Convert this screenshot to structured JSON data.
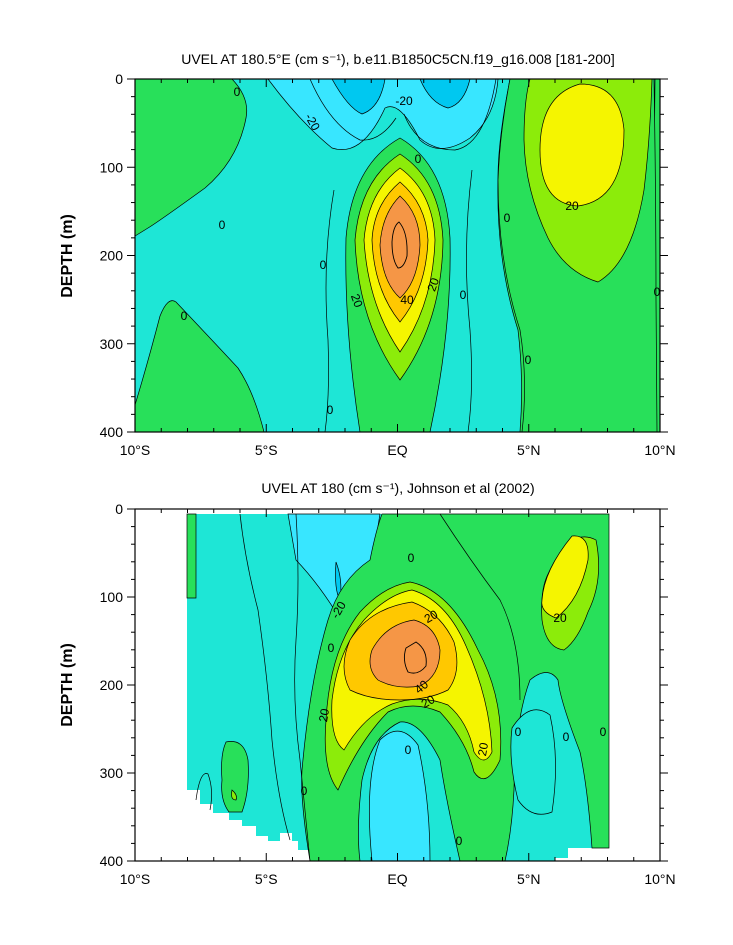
{
  "chart_data": [
    {
      "type": "heatmap",
      "subtype": "filled-contour",
      "title": "UVEL AT 180.5°E (cm s⁻¹), b.e11.B1850C5CN.f19_g16.008 [181-200]",
      "xlabel": "",
      "ylabel": "DEPTH (m)",
      "xlim": [
        -10,
        10
      ],
      "ylim": [
        400,
        0
      ],
      "xticks": [
        -10,
        -5,
        0,
        5,
        10
      ],
      "xtick_labels": [
        "10°S",
        "5°S",
        "EQ",
        "5°N",
        "10°N"
      ],
      "yticks": [
        0,
        100,
        200,
        300,
        400
      ],
      "ytick_labels": [
        "0",
        "100",
        "200",
        "300",
        "400"
      ],
      "contour_interval": 10,
      "color_levels": [
        {
          "range": "< -20",
          "color": "#00c8f0"
        },
        {
          "range": "-20 to -10",
          "color": "#38e6ff"
        },
        {
          "range": "-10 to 0",
          "color": "#1ee6d6"
        },
        {
          "range": "0 to 10",
          "color": "#28e05a"
        },
        {
          "range": "10 to 20",
          "color": "#8cec0a"
        },
        {
          "range": "20 to 30",
          "color": "#f5f500"
        },
        {
          "range": "30 to 40",
          "color": "#ffc800"
        },
        {
          "range": "> 40",
          "color": "#f59646"
        }
      ],
      "features": [
        {
          "label": "equatorial undercurrent core",
          "x": 0,
          "y": 185,
          "max_value": 50
        },
        {
          "label": "eastward maximum",
          "x": 7,
          "y": 70,
          "value": 30
        },
        {
          "label": "westward surface flow",
          "x": 0,
          "y": 15,
          "value": -25
        }
      ],
      "contour_labels": [
        {
          "text": "0",
          "x": -6.2,
          "y": 15
        },
        {
          "text": "-20",
          "x": -3.5,
          "y": 48
        },
        {
          "text": "-20",
          "x": 0.2,
          "y": 25
        },
        {
          "text": "0",
          "x": 0.7,
          "y": 90
        },
        {
          "text": "0",
          "x": -6.7,
          "y": 165
        },
        {
          "text": "0",
          "x": 4.1,
          "y": 160
        },
        {
          "text": "20",
          "x": 6.6,
          "y": 142
        },
        {
          "text": "0",
          "x": -2.8,
          "y": 210
        },
        {
          "text": "0",
          "x": -8.2,
          "y": 270
        },
        {
          "text": "20",
          "x": -1.7,
          "y": 253
        },
        {
          "text": "40",
          "x": 0.3,
          "y": 253
        },
        {
          "text": "20",
          "x": 1.4,
          "y": 233
        },
        {
          "text": "0",
          "x": 2.4,
          "y": 247
        },
        {
          "text": "0",
          "x": 9.9,
          "y": 242
        },
        {
          "text": "0",
          "x": 4.9,
          "y": 320
        },
        {
          "text": "0",
          "x": -2.6,
          "y": 378
        }
      ]
    },
    {
      "type": "heatmap",
      "subtype": "filled-contour",
      "title": "UVEL AT 180 (cm s⁻¹), Johnson et al (2002)",
      "xlabel": "",
      "ylabel": "DEPTH (m)",
      "xlim": [
        -10,
        10
      ],
      "ylim": [
        400,
        0
      ],
      "data_extent_x": [
        -8,
        8
      ],
      "xticks": [
        -10,
        -5,
        0,
        5,
        10
      ],
      "xtick_labels": [
        "10°S",
        "5°S",
        "EQ",
        "5°N",
        "10°N"
      ],
      "yticks": [
        0,
        100,
        200,
        300,
        400
      ],
      "ytick_labels": [
        "0",
        "100",
        "200",
        "300",
        "400"
      ],
      "contour_interval": 10,
      "color_levels": [
        {
          "range": "< -20",
          "color": "#00c8f0"
        },
        {
          "range": "-20 to -10",
          "color": "#38e6ff"
        },
        {
          "range": "-10 to 0",
          "color": "#1ee6d6"
        },
        {
          "range": "0 to 10",
          "color": "#28e05a"
        },
        {
          "range": "10 to 20",
          "color": "#8cec0a"
        },
        {
          "range": "20 to 30",
          "color": "#f5f500"
        },
        {
          "range": "30 to 40",
          "color": "#ffc800"
        },
        {
          "range": "> 40",
          "color": "#f59646"
        }
      ],
      "features": [
        {
          "label": "equatorial undercurrent core",
          "x": 0.5,
          "y": 165,
          "max_value": 50
        },
        {
          "label": "eastward maximum",
          "x": 6.5,
          "y": 80,
          "value": 25
        },
        {
          "label": "westward flow",
          "x": -2,
          "y": 80,
          "value": -25
        }
      ],
      "contour_labels": [
        {
          "text": "0",
          "x": 0.4,
          "y": 55
        },
        {
          "text": "-20",
          "x": -2.2,
          "y": 115
        },
        {
          "text": "20",
          "x": 1.3,
          "y": 122
        },
        {
          "text": "20",
          "x": 6.2,
          "y": 122
        },
        {
          "text": "0",
          "x": -2.6,
          "y": 162
        },
        {
          "text": "40",
          "x": 0.9,
          "y": 202
        },
        {
          "text": "20",
          "x": 1.2,
          "y": 220
        },
        {
          "text": "20",
          "x": -2.7,
          "y": 232
        },
        {
          "text": "20",
          "x": 3.4,
          "y": 276
        },
        {
          "text": "0",
          "x": 0.3,
          "y": 276
        },
        {
          "text": "0",
          "x": 4.8,
          "y": 255
        },
        {
          "text": "0",
          "x": 6.3,
          "y": 260
        },
        {
          "text": "0",
          "x": 7.7,
          "y": 255
        },
        {
          "text": "0",
          "x": -3.6,
          "y": 322
        },
        {
          "text": "0",
          "x": 2.3,
          "y": 375
        }
      ]
    }
  ]
}
